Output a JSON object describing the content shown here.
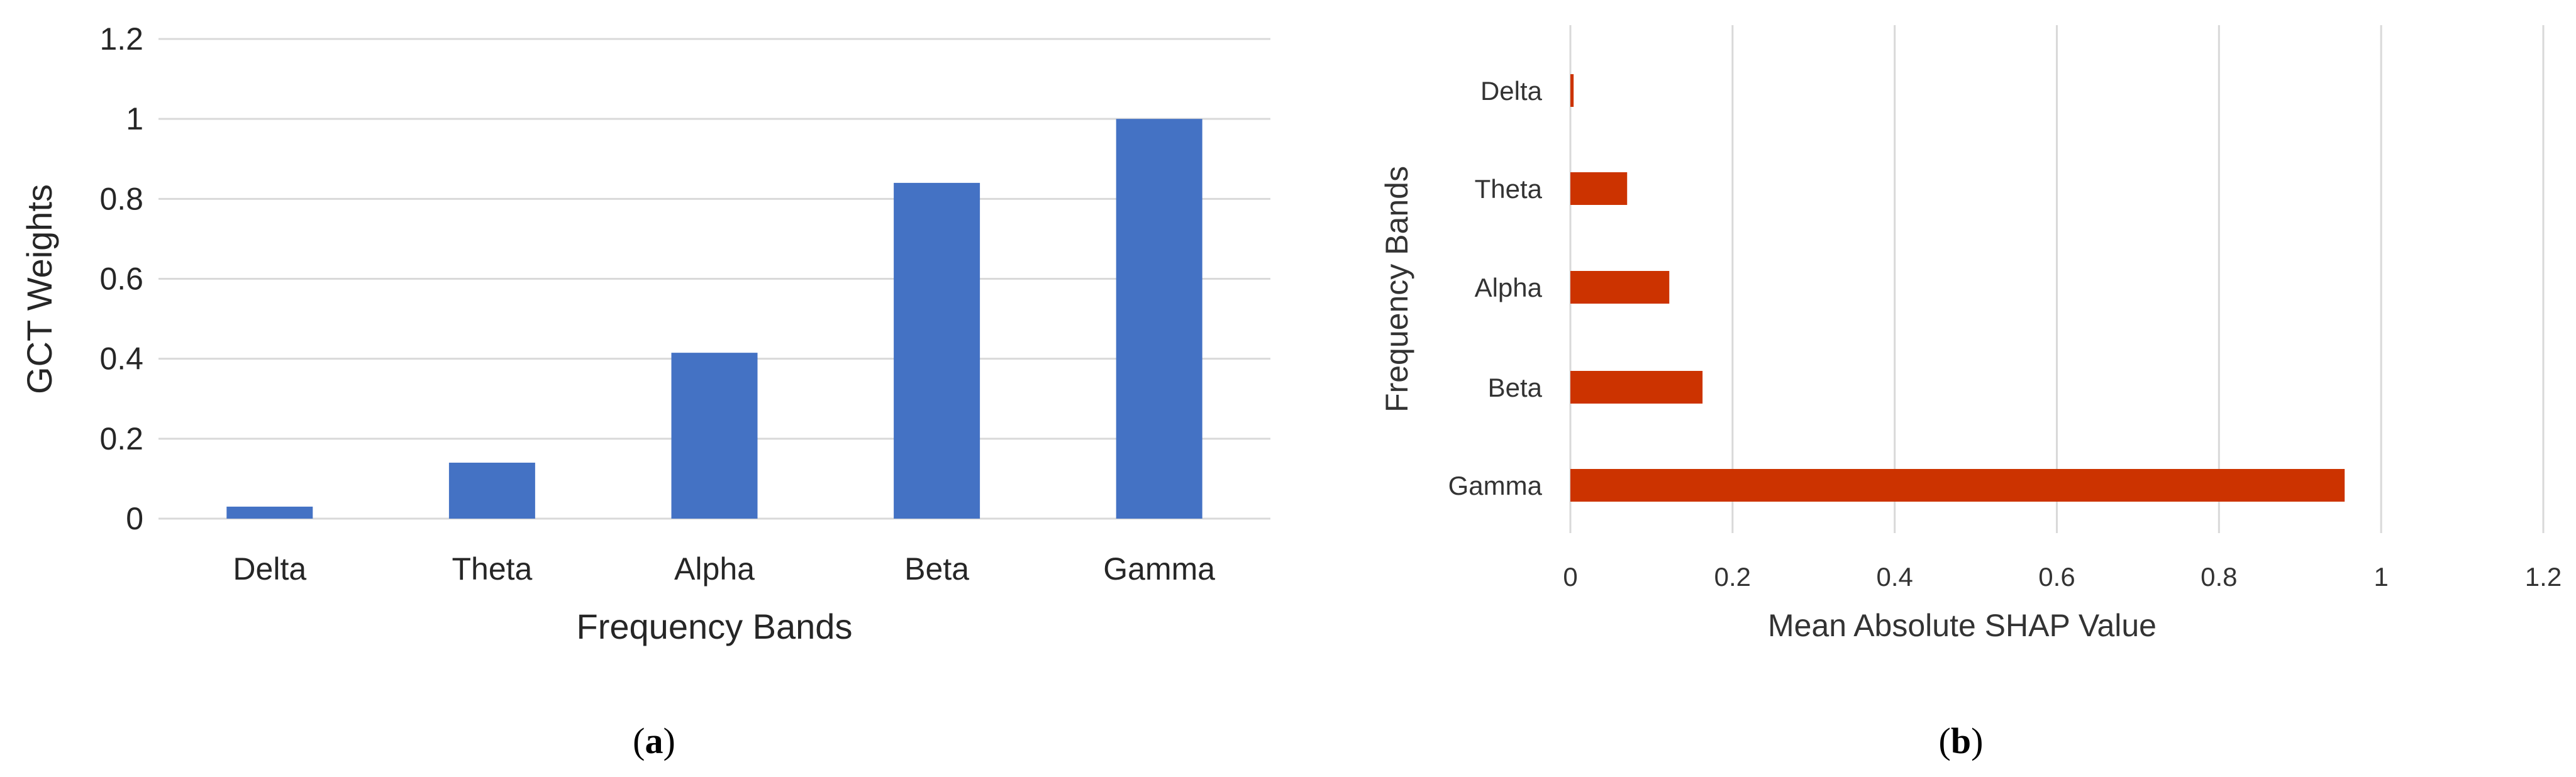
{
  "chart_data": [
    {
      "type": "bar",
      "orientation": "vertical",
      "caption": "a",
      "categories": [
        "Delta",
        "Theta",
        "Alpha",
        "Beta",
        "Gamma"
      ],
      "values": [
        0.03,
        0.14,
        0.415,
        0.84,
        1.0
      ],
      "xlabel": "Frequency Bands",
      "ylabel": "GCT Weights",
      "ylim": [
        0,
        1.2
      ],
      "yticks": [
        "0",
        "0.2",
        "0.4",
        "0.6",
        "0.8",
        "1",
        "1.2"
      ],
      "grid": true,
      "color": "#4472C4"
    },
    {
      "type": "bar",
      "orientation": "horizontal",
      "caption": "b",
      "categories": [
        "Delta",
        "Theta",
        "Alpha",
        "Beta",
        "Gamma"
      ],
      "values": [
        0.004,
        0.07,
        0.122,
        0.163,
        0.955
      ],
      "xlabel": "Mean Absolute SHAP Value",
      "ylabel": "Frequency Bands",
      "xlim": [
        0,
        1.2
      ],
      "xticks": [
        "0",
        "0.2",
        "0.4",
        "0.6",
        "0.8",
        "1",
        "1.2"
      ],
      "grid": true,
      "color": "#CC3300"
    }
  ]
}
